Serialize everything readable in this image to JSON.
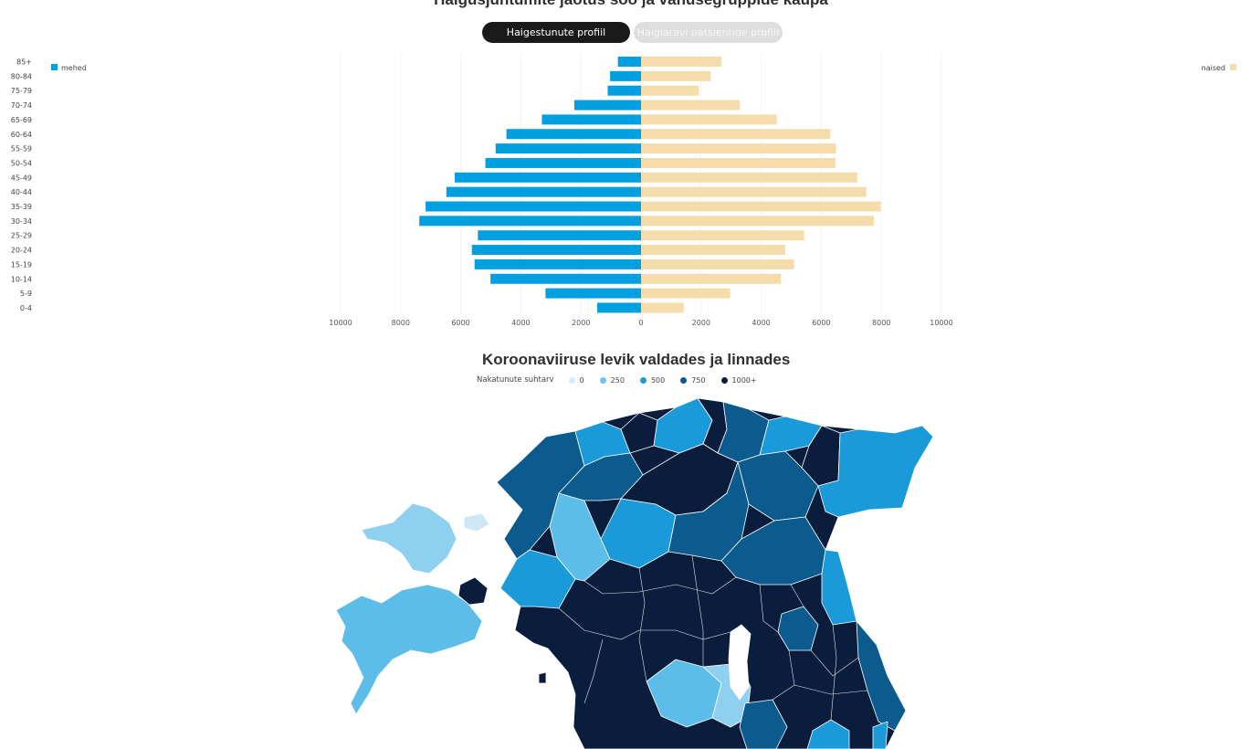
{
  "pyramid_title": "Haigusjuhtumite jaotus soo ja vanusegruppide kaupa",
  "tabs": [
    {
      "label": "Haigestunute profiil",
      "active": true
    },
    {
      "label": "Haiglaravi patsientide profiil",
      "active": false
    }
  ],
  "colors": {
    "men": "#009fe0",
    "women": "#f5dcab",
    "map_scale": [
      "#d8ecf8",
      "#6cc3eb",
      "#1a9ad9",
      "#0b5b8f",
      "#0b1d3d"
    ]
  },
  "chart_data": {
    "type": "bar",
    "orientation": "horizontal",
    "categories": [
      "85+",
      "80-84",
      "75-79",
      "70-74",
      "65-69",
      "60-64",
      "55-59",
      "50-54",
      "45-49",
      "40-44",
      "35-39",
      "30-34",
      "25-29",
      "20-24",
      "15-19",
      "10-14",
      "5-9",
      "0-4"
    ],
    "series": [
      {
        "name": "mehed",
        "values": [
          770,
          1030,
          1110,
          2220,
          3300,
          4480,
          4840,
          5180,
          6200,
          6480,
          7170,
          7380,
          5430,
          5630,
          5540,
          5010,
          3180,
          1460
        ]
      },
      {
        "name": "naised",
        "values": [
          2680,
          2320,
          1920,
          3290,
          4520,
          6300,
          6490,
          6470,
          7200,
          7500,
          7980,
          7750,
          5430,
          4800,
          5100,
          4660,
          2970,
          1420
        ]
      }
    ],
    "x_ticks": [
      "10000",
      "8000",
      "6000",
      "4000",
      "2000",
      "0",
      "2000",
      "4000",
      "6000",
      "8000",
      "10000"
    ],
    "xlim": [
      -10000,
      10000
    ],
    "legend": [
      {
        "label": "mehed",
        "placement": "top-left"
      },
      {
        "label": "naised",
        "placement": "top-right"
      }
    ],
    "grid": true
  },
  "map_title": "Koroonaviiruse levik valdades ja linnades",
  "map_legend": {
    "title": "Nakatunute suhtarv",
    "items": [
      "0",
      "250",
      "500",
      "750",
      "1000+"
    ]
  }
}
